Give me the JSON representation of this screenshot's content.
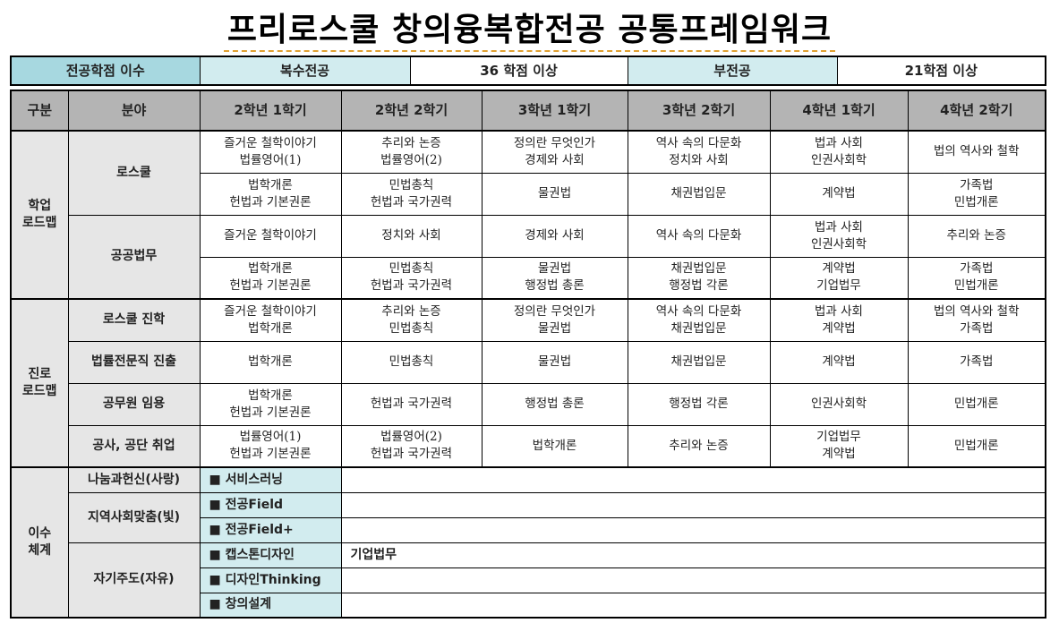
{
  "title": "프리로스쿨 창의융복합전공 공통프레임워크",
  "credits": {
    "label": "전공학점 이수",
    "double_major": "복수전공",
    "double_major_credits": "36 학점 이상",
    "minor": "부전공",
    "minor_credits": "21학점 이상"
  },
  "header": [
    "구분",
    "분야",
    "2학년 1학기",
    "2학년 2학기",
    "3학년 1학기",
    "3학년 2학기",
    "4학년 1학기",
    "4학년 2학기"
  ],
  "academic": {
    "label": "학업\n로드맵",
    "fields": [
      {
        "name": "로스쿨",
        "rows": [
          [
            "즐거운 철학이야기\n법률영어(1)",
            "추리와 논증\n법률영어(2)",
            "정의란 무엇인가\n경제와 사회",
            "역사 속의 다문화\n정치와 사회",
            "법과 사회\n인권사회학",
            "법의 역사와 철학"
          ],
          [
            "법학개론\n헌법과 기본권론",
            "민법총칙\n헌법과 국가권력",
            "물권법",
            "채권법입문",
            "계약법",
            "가족법\n민법개론"
          ]
        ]
      },
      {
        "name": "공공법무",
        "rows": [
          [
            "즐거운 철학이야기",
            "정치와 사회",
            "경제와 사회",
            "역사 속의 다문화",
            "법과 사회\n인권사회학",
            "추리와 논증"
          ],
          [
            "법학개론\n헌법과 기본권론",
            "민법총칙\n헌법과 국가권력",
            "물권법\n행정법 총론",
            "채권법입문\n행정법 각론",
            "계약법\n기업법무",
            "가족법\n민법개론"
          ]
        ]
      }
    ]
  },
  "career": {
    "label": "진로\n로드맵",
    "rows": [
      {
        "name": "로스쿨 진학",
        "cells": [
          "즐거운 철학이야기\n법학개론",
          "추리와 논증\n민법총칙",
          "정의란 무엇인가\n물권법",
          "역사 속의 다문화\n채권법입문",
          "법과 사회\n계약법",
          "법의 역사와 철학\n가족법"
        ]
      },
      {
        "name": "법률전문직 진출",
        "cells": [
          "법학개론",
          "민법총칙",
          "물권법",
          "채권법입문",
          "계약법",
          "가족법"
        ]
      },
      {
        "name": "공무원 임용",
        "cells": [
          "법학개론\n헌법과 기본권론",
          "헌법과 국가권력",
          "행정법 총론",
          "행정법 각론",
          "인권사회학",
          "민법개론"
        ]
      },
      {
        "name": "공사, 공단 취업",
        "cells": [
          "법률영어(1)\n헌법과 기본권론",
          "법률영어(2)\n헌법과 국가권력",
          "법학개론",
          "추리와 논증",
          "기업법무\n계약법",
          "민법개론"
        ]
      }
    ]
  },
  "system": {
    "label": "이수\n체계",
    "groups": [
      {
        "name": "나눔과헌신(사랑)",
        "items": [
          {
            "name": "■ 서비스러닝",
            "note": ""
          }
        ]
      },
      {
        "name": "지역사회맞춤(빛)",
        "items": [
          {
            "name": "■ 전공Field",
            "note": ""
          },
          {
            "name": "■ 전공Field+",
            "note": ""
          }
        ]
      },
      {
        "name": "자기주도(자유)",
        "items": [
          {
            "name": "■ 캡스톤디자인",
            "note": "기업법무"
          },
          {
            "name": "■ 디자인Thinking",
            "note": ""
          },
          {
            "name": "■ 창의설계",
            "note": ""
          }
        ]
      }
    ]
  }
}
